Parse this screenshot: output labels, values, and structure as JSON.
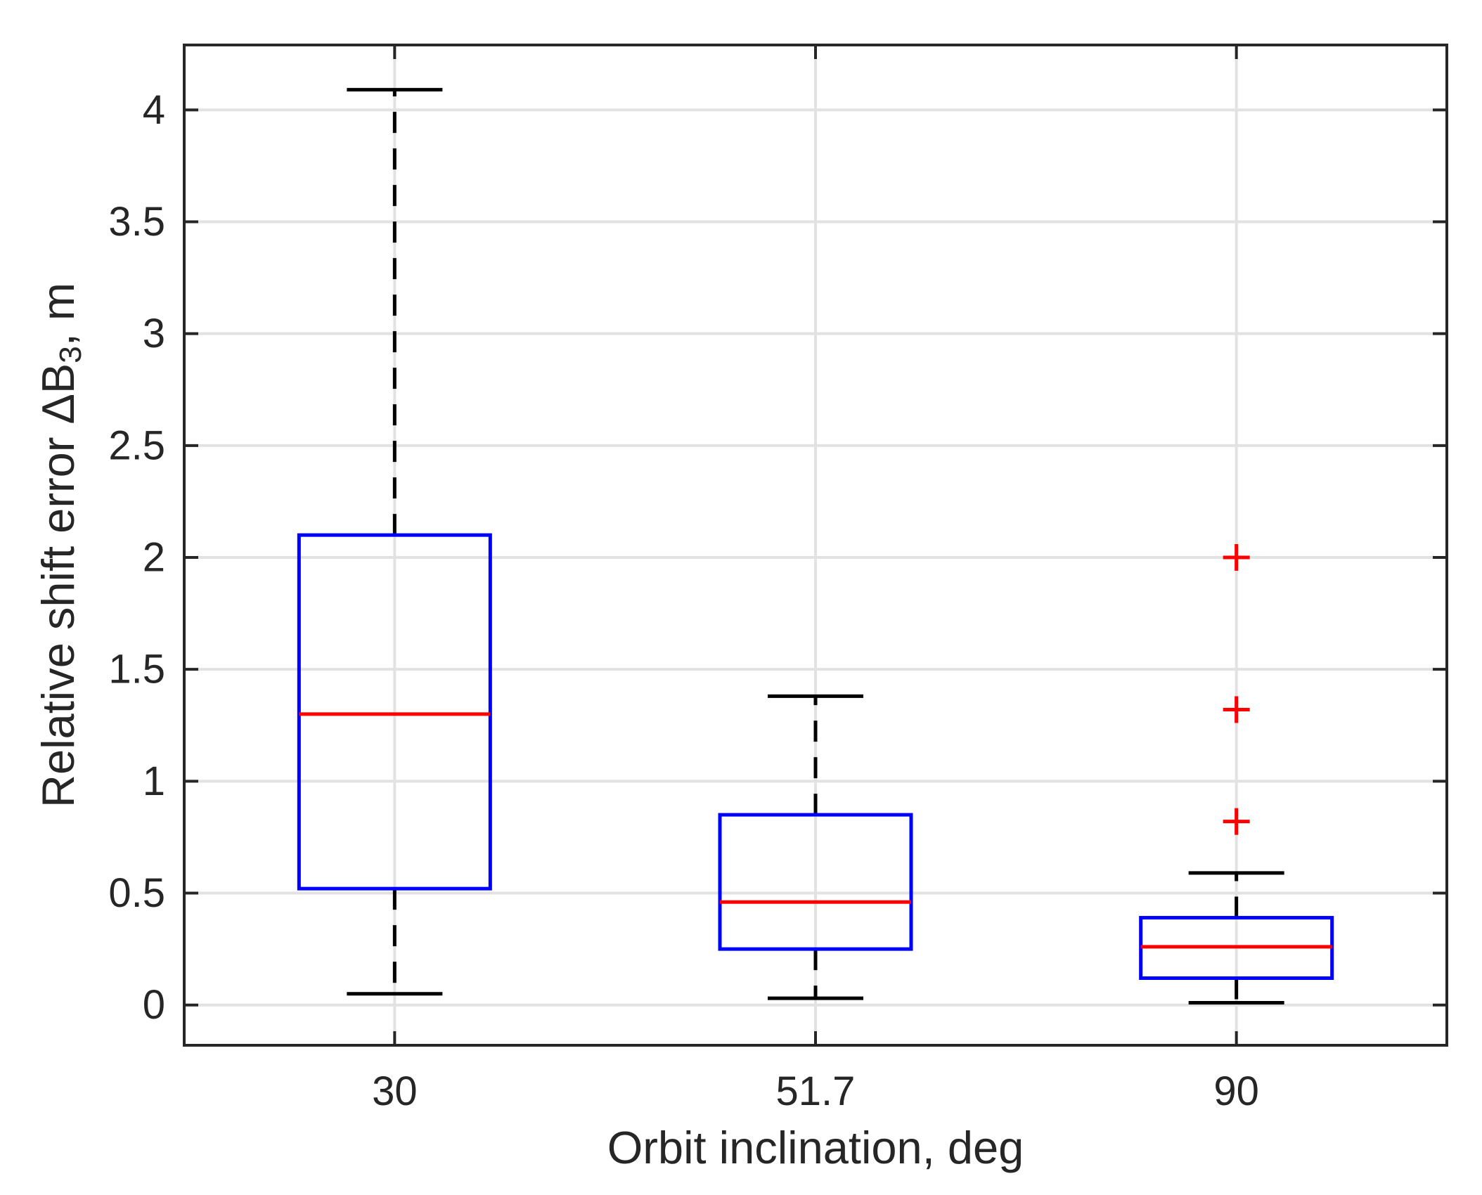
{
  "chart_data": {
    "type": "boxplot",
    "title": "",
    "xlabel": "Orbit inclination, deg",
    "ylabel": {
      "prefix": "Relative shift error ",
      "delta": "Δ",
      "base": "B",
      "sub": "3",
      "suffix": ", m"
    },
    "categories": [
      "30",
      "51.7",
      "90"
    ],
    "x_positions_units": [
      1,
      2,
      3
    ],
    "xlim_units": [
      0.5,
      3.5
    ],
    "ylim": [
      -0.18,
      4.29
    ],
    "grid": true,
    "grid_x": true,
    "grid_y": true,
    "legend": null,
    "yticks": [
      {
        "v": 0,
        "label": "0"
      },
      {
        "v": 0.5,
        "label": "0.5"
      },
      {
        "v": 1,
        "label": "1"
      },
      {
        "v": 1.5,
        "label": "1.5"
      },
      {
        "v": 2,
        "label": "2"
      },
      {
        "v": 2.5,
        "label": "2.5"
      },
      {
        "v": 3,
        "label": "3"
      },
      {
        "v": 3.5,
        "label": "3.5"
      },
      {
        "v": 4,
        "label": "4"
      }
    ],
    "series": [
      {
        "category": "30",
        "whisker_low": 0.05,
        "q1": 0.52,
        "median": 1.3,
        "q3": 2.1,
        "whisker_high": 4.09,
        "outliers": []
      },
      {
        "category": "51.7",
        "whisker_low": 0.03,
        "q1": 0.25,
        "median": 0.46,
        "q3": 0.85,
        "whisker_high": 1.38,
        "outliers": []
      },
      {
        "category": "90",
        "whisker_low": 0.01,
        "q1": 0.12,
        "median": 0.26,
        "q3": 0.39,
        "whisker_high": 0.59,
        "outliers": [
          0.82,
          1.32,
          2.0
        ]
      }
    ],
    "colors": {
      "box": "#0000FF",
      "median": "#FF0000",
      "whisker": "#000000",
      "cap": "#000000",
      "outlier": "#FF0000",
      "grid": "#E2E2E2",
      "axis": "#262626",
      "tick_label": "#262626",
      "background": "#FFFFFF"
    }
  }
}
